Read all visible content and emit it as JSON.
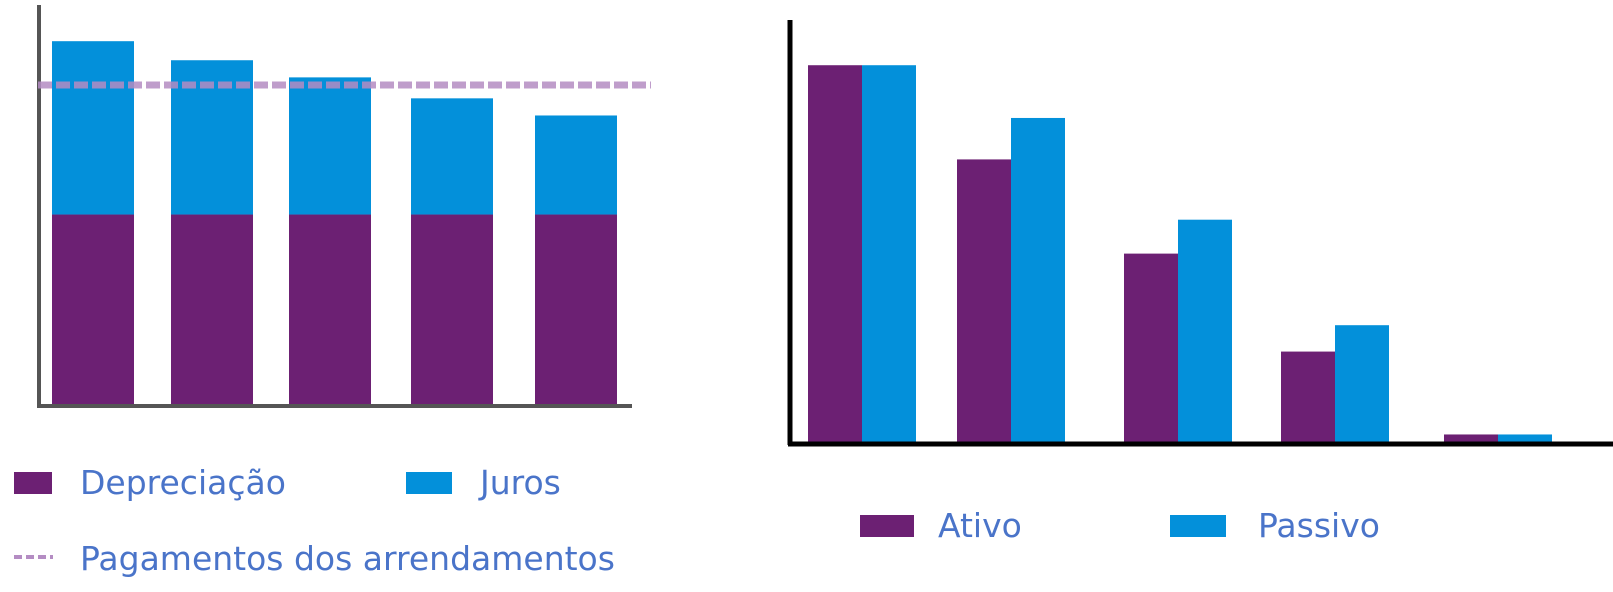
{
  "colors": {
    "depreciation": "#6c2073",
    "interest": "#0390da",
    "ativo": "#6c2073",
    "passivo": "#0390da",
    "dashed_line": "#b48cc3",
    "axis_left_chart": "#555555",
    "axis_right_chart": "#000000",
    "legend_text": "#4a74c9"
  },
  "chart_data": [
    {
      "type": "bar",
      "stacked": true,
      "categories": [
        "",
        "",
        "",
        "",
        ""
      ],
      "series": [
        {
          "name": "Depreciação",
          "values": [
            100,
            100,
            100,
            100,
            100
          ]
        },
        {
          "name": "Juros",
          "values": [
            91,
            81,
            72,
            61,
            52
          ]
        }
      ],
      "reference_line": {
        "name": "Pagamentos dos arrendamentos",
        "value": 168,
        "style": "dashed"
      },
      "ylim": [
        0,
        210
      ],
      "legend": "bottom",
      "grid": false,
      "legend_items": [
        {
          "label": "Depreciação",
          "series": "Depreciação",
          "kind": "box"
        },
        {
          "label": "Juros",
          "series": "Juros",
          "kind": "box"
        },
        {
          "label": "Pagamentos dos arrendamentos",
          "series": "reference_line",
          "kind": "dash"
        }
      ]
    },
    {
      "type": "bar",
      "categories": [
        "",
        "",
        "",
        "",
        ""
      ],
      "series": [
        {
          "name": "Ativo",
          "values": [
            100,
            75,
            50,
            24,
            2
          ]
        },
        {
          "name": "Passivo",
          "values": [
            100,
            86,
            59,
            31,
            2
          ]
        }
      ],
      "ylim": [
        0,
        112
      ],
      "legend": "bottom",
      "grid": false,
      "legend_items": [
        {
          "label": "Ativo",
          "series": "Ativo",
          "kind": "box"
        },
        {
          "label": "Passivo",
          "series": "Passivo",
          "kind": "box"
        }
      ]
    }
  ]
}
